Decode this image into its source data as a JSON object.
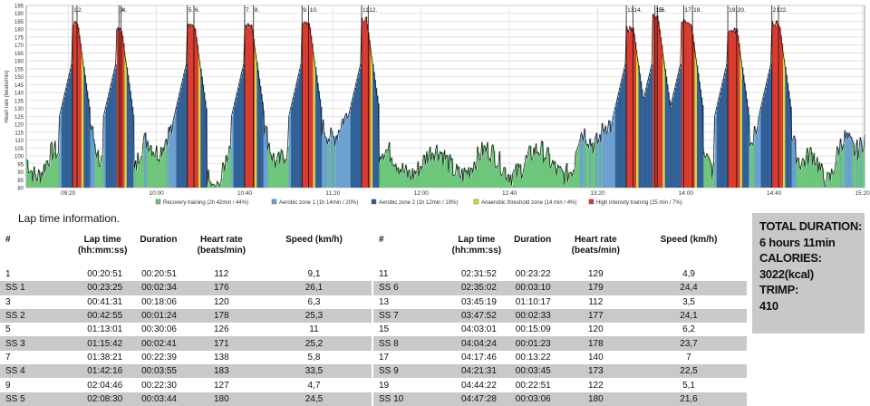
{
  "chart_data": {
    "type": "area",
    "ylabel": "Heart rate (beats/min)",
    "ylim": [
      80,
      195
    ],
    "yticks": [
      80,
      85,
      90,
      95,
      100,
      105,
      110,
      115,
      120,
      125,
      130,
      135,
      140,
      145,
      150,
      155,
      160,
      165,
      170,
      175,
      180,
      185,
      190,
      195
    ],
    "x_range": [
      "09:01",
      "15:21"
    ],
    "xticks": [
      "09:20",
      "10:00",
      "10:40",
      "11:20",
      "12:00",
      "12:40",
      "13:20",
      "14:00",
      "14:40",
      "15:20"
    ],
    "grid": true,
    "lap_markers": [
      {
        "label": "1.",
        "time": "09:22"
      },
      {
        "label": "2.",
        "time": "09:24"
      },
      {
        "label": "3.",
        "time": "09:43"
      },
      {
        "label": "4.",
        "time": "09:44"
      },
      {
        "label": "5.",
        "time": "10:14"
      },
      {
        "label": "6.",
        "time": "10:17"
      },
      {
        "label": "7.",
        "time": "10:40"
      },
      {
        "label": "8.",
        "time": "10:44"
      },
      {
        "label": "9.",
        "time": "11:06"
      },
      {
        "label": "10.",
        "time": "11:09"
      },
      {
        "label": "11.",
        "time": "11:33"
      },
      {
        "label": "12.",
        "time": "11:36"
      },
      {
        "label": "13.",
        "time": "13:33"
      },
      {
        "label": "14.",
        "time": "13:36"
      },
      {
        "label": "15.",
        "time": "13:46"
      },
      {
        "label": "16.",
        "time": "13:47"
      },
      {
        "label": "17.",
        "time": "13:59"
      },
      {
        "label": "18.",
        "time": "14:03"
      },
      {
        "label": "19.",
        "time": "14:19"
      },
      {
        "label": "20.",
        "time": "14:23"
      },
      {
        "label": "21.",
        "time": "14:39"
      },
      {
        "label": "22.",
        "time": "14:42"
      }
    ],
    "zones": [
      {
        "name": "Recovery training",
        "label": "Recovery training (2h 42min / 44%)",
        "color": "#6cc57a"
      },
      {
        "name": "Aerobic zone 1",
        "label": "Aerobic zone 1 (1h 14min / 20%)",
        "color": "#6a9fd0"
      },
      {
        "name": "Aerobic zone 2",
        "label": "Aerobic zone 2 (1h 12min / 19%)",
        "color": "#2f5f96"
      },
      {
        "name": "Anaerobic threshold zone",
        "label": "Anaerobic threshold zone (14 min / 4%)",
        "color": "#d8d83a"
      },
      {
        "name": "High intensity training",
        "label": "High intensity training (25 min / 7%)",
        "color": "#d83a2e"
      }
    ],
    "efforts": [
      {
        "start": "09:22",
        "end": "09:24",
        "peak": 186
      },
      {
        "start": "09:42",
        "end": "09:44",
        "peak": 181
      },
      {
        "start": "10:14",
        "end": "10:17",
        "peak": 185
      },
      {
        "start": "10:40",
        "end": "10:43",
        "peak": 184
      },
      {
        "start": "11:06",
        "end": "11:09",
        "peak": 186
      },
      {
        "start": "11:33",
        "end": "11:35",
        "peak": 188
      },
      {
        "start": "13:33",
        "end": "13:36",
        "peak": 182
      },
      {
        "start": "13:45",
        "end": "13:47",
        "peak": 190
      },
      {
        "start": "13:58",
        "end": "14:02",
        "peak": 187
      },
      {
        "start": "14:19",
        "end": "14:23",
        "peak": 181
      },
      {
        "start": "14:39",
        "end": "14:42",
        "peak": 186
      }
    ]
  },
  "lap_section_title": "Lap time information.",
  "lap_table": {
    "headers": [
      "#",
      "Lap time\n(hh:mm:ss)",
      "Duration",
      "Heart rate\n(beats/min)",
      "Speed (km/h)"
    ],
    "left": [
      [
        "1",
        "00:20:51",
        "00:20:51",
        "112",
        "9,1"
      ],
      [
        "SS 1",
        "00:23:25",
        "00:02:34",
        "176",
        "26,1"
      ],
      [
        "3",
        "00:41:31",
        "00:18:06",
        "120",
        "6,3"
      ],
      [
        "SS 2",
        "00:42:55",
        "00:01:24",
        "178",
        "25,3"
      ],
      [
        "5",
        "01:13:01",
        "00:30:06",
        "126",
        "11"
      ],
      [
        "SS 3",
        "01:15:42",
        "00:02:41",
        "171",
        "25,2"
      ],
      [
        "7",
        "01:38:21",
        "00:22:39",
        "138",
        "5,8"
      ],
      [
        "SS 4",
        "01:42:16",
        "00:03:55",
        "183",
        "33,5"
      ],
      [
        "9",
        "02:04:46",
        "00:22:30",
        "127",
        "4,7"
      ],
      [
        "SS 5",
        "02:08:30",
        "00:03:44",
        "180",
        "24,5"
      ]
    ],
    "right": [
      [
        "11",
        "02:31:52",
        "00:23:22",
        "129",
        "4,9"
      ],
      [
        "SS 6",
        "02:35:02",
        "00:03:10",
        "179",
        "24,4"
      ],
      [
        "13",
        "03:45:19",
        "01:10:17",
        "112",
        "3,5"
      ],
      [
        "SS 7",
        "03:47:52",
        "00:02:33",
        "177",
        "24,1"
      ],
      [
        "15",
        "04:03:01",
        "00:15:09",
        "120",
        "6,2"
      ],
      [
        "SS 8",
        "04:04:24",
        "00:01:23",
        "178",
        "23,7"
      ],
      [
        "17",
        "04:17:46",
        "00:13:22",
        "140",
        "7"
      ],
      [
        "SS 9",
        "04:21:31",
        "00:03:45",
        "173",
        "22,5"
      ],
      [
        "19",
        "04:44:22",
        "00:22:51",
        "122",
        "5,1"
      ],
      [
        "SS 10",
        "04:47:28",
        "00:03:06",
        "180",
        "21,6"
      ]
    ]
  },
  "summary": {
    "duration_label": "TOTAL DURATION:",
    "duration_value": "6 hours 11min",
    "calories_label": "CALORIES:",
    "calories_value": "3022(kcal)",
    "trimp_label": "TRIMP:",
    "trimp_value": "410"
  }
}
